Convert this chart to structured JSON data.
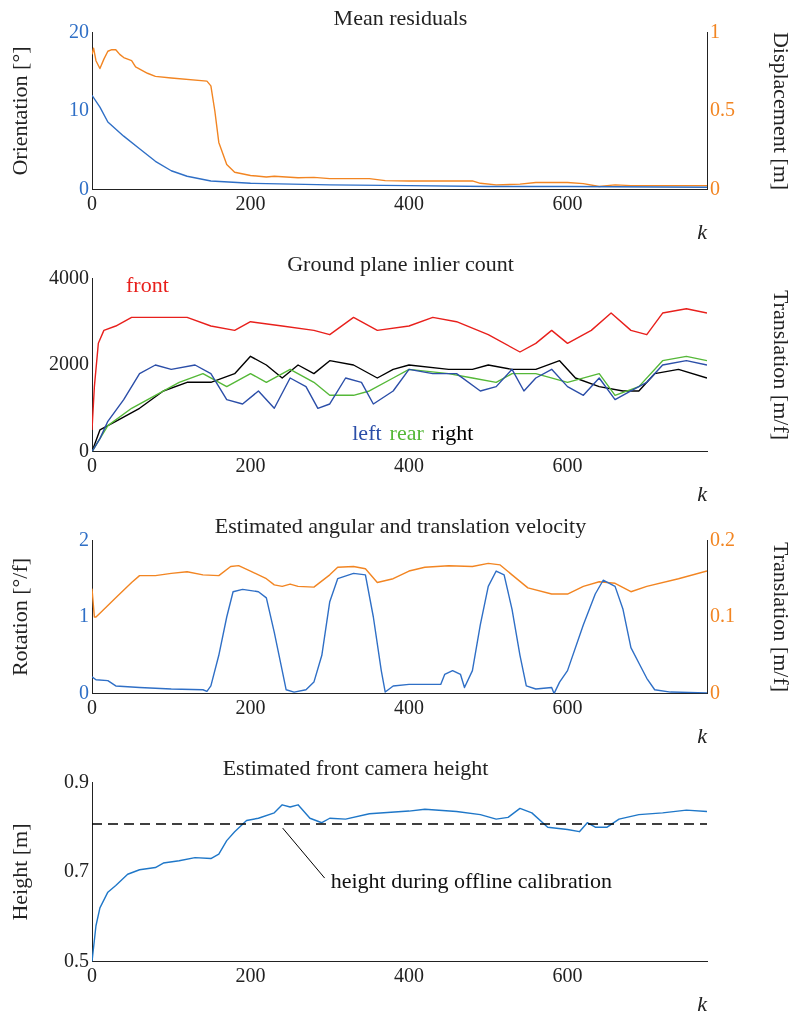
{
  "chart_data": [
    {
      "type": "line",
      "title": "Mean residuals",
      "xlabel": "k",
      "ylabel": "Orientation [°]",
      "y2label": "Displacement [m]",
      "xlim": [
        0,
        776
      ],
      "xticks": [
        0,
        200,
        400,
        600
      ],
      "ylim": [
        0,
        20
      ],
      "yticks": [
        0,
        10,
        20
      ],
      "y2lim": [
        0,
        1
      ],
      "y2ticks": [
        0,
        0.5,
        1
      ],
      "marker": "none",
      "series": [
        {
          "color": "#2f6fc6",
          "x": [
            0,
            10,
            20,
            40,
            60,
            80,
            100,
            120,
            150,
            200,
            300,
            400,
            500,
            600,
            776
          ],
          "values": [
            12,
            10.5,
            8.6,
            6.8,
            5.2,
            3.6,
            2.4,
            1.7,
            1.1,
            0.8,
            0.6,
            0.5,
            0.4,
            0.4,
            0.3
          ]
        },
        {
          "color": "#f28522",
          "axis": "y2",
          "x": [
            0,
            2,
            5,
            10,
            15,
            20,
            25,
            30,
            35,
            40,
            50,
            55,
            70,
            80,
            100,
            145,
            150,
            155,
            160,
            170,
            180,
            200,
            220,
            230,
            260,
            280,
            300,
            350,
            370,
            400,
            480,
            490,
            510,
            540,
            560,
            600,
            620,
            640,
            660,
            680,
            776
          ],
          "values": [
            0.86,
            0.9,
            0.82,
            0.77,
            0.83,
            0.88,
            0.89,
            0.89,
            0.86,
            0.84,
            0.82,
            0.78,
            0.74,
            0.72,
            0.71,
            0.69,
            0.66,
            0.5,
            0.3,
            0.16,
            0.11,
            0.09,
            0.08,
            0.085,
            0.075,
            0.078,
            0.07,
            0.07,
            0.057,
            0.055,
            0.055,
            0.04,
            0.03,
            0.035,
            0.045,
            0.045,
            0.038,
            0.02,
            0.03,
            0.025,
            0.025
          ]
        }
      ]
    },
    {
      "type": "line",
      "title": "Ground plane inlier count",
      "xlabel": "k",
      "y2label": "Translation [m/f]",
      "xlim": [
        0,
        776
      ],
      "xticks": [
        0,
        200,
        400,
        600
      ],
      "ylim": [
        0,
        4000
      ],
      "yticks": [
        0,
        2000,
        4000
      ],
      "marker": "none",
      "series": [
        {
          "name": "front",
          "color": "#e8201c",
          "x": [
            0,
            3,
            8,
            15,
            30,
            50,
            80,
            120,
            150,
            180,
            200,
            240,
            280,
            300,
            330,
            360,
            400,
            430,
            460,
            500,
            540,
            560,
            580,
            600,
            630,
            655,
            680,
            700,
            720,
            750,
            776
          ],
          "values": [
            500,
            1500,
            2500,
            2800,
            2900,
            3100,
            3100,
            3100,
            2900,
            2800,
            3000,
            2900,
            2800,
            2700,
            3100,
            2800,
            2900,
            3100,
            3000,
            2700,
            2300,
            2500,
            2800,
            2500,
            2800,
            3200,
            2800,
            2700,
            3200,
            3300,
            3200
          ]
        },
        {
          "name": "left",
          "color": "#2b4ea8",
          "x": [
            0,
            10,
            20,
            40,
            60,
            80,
            100,
            130,
            150,
            170,
            190,
            210,
            230,
            250,
            270,
            285,
            300,
            320,
            340,
            355,
            380,
            400,
            430,
            460,
            490,
            510,
            530,
            545,
            560,
            580,
            600,
            620,
            640,
            660,
            680,
            700,
            720,
            750,
            776
          ],
          "values": [
            0,
            300,
            700,
            1200,
            1800,
            2000,
            1900,
            2000,
            1800,
            1200,
            1100,
            1400,
            1000,
            1700,
            1500,
            1000,
            1100,
            1700,
            1600,
            1100,
            1400,
            1900,
            1800,
            1800,
            1400,
            1500,
            1900,
            1400,
            1700,
            1900,
            1500,
            1300,
            1700,
            1200,
            1400,
            1600,
            2000,
            2100,
            2000
          ]
        },
        {
          "name": "rear",
          "color": "#55b838",
          "x": [
            0,
            20,
            50,
            80,
            110,
            140,
            170,
            200,
            220,
            250,
            280,
            300,
            330,
            350,
            380,
            400,
            450,
            480,
            510,
            530,
            560,
            600,
            640,
            660,
            690,
            720,
            750,
            776
          ],
          "values": [
            0,
            600,
            1000,
            1300,
            1600,
            1800,
            1500,
            1800,
            1600,
            1900,
            1600,
            1300,
            1300,
            1400,
            1700,
            1900,
            1800,
            1700,
            1600,
            1800,
            1800,
            1600,
            1800,
            1300,
            1500,
            2100,
            2200,
            2100
          ]
        },
        {
          "name": "right",
          "color": "#000000",
          "x": [
            0,
            10,
            30,
            60,
            90,
            120,
            150,
            180,
            200,
            220,
            240,
            260,
            280,
            300,
            330,
            360,
            380,
            400,
            450,
            480,
            500,
            530,
            560,
            590,
            610,
            640,
            670,
            690,
            710,
            740,
            776
          ],
          "values": [
            0,
            500,
            700,
            1000,
            1400,
            1600,
            1600,
            1800,
            2200,
            2000,
            1700,
            2000,
            1800,
            2100,
            2000,
            1700,
            1900,
            2000,
            1900,
            1900,
            2000,
            1900,
            1900,
            2100,
            1700,
            1500,
            1400,
            1400,
            1800,
            1900,
            1700
          ]
        }
      ]
    },
    {
      "type": "line",
      "title": "Estimated angular and translation velocity",
      "xlabel": "k",
      "ylabel": "Rotation [°/f]",
      "y2label": "Translation [m/f]",
      "xlim": [
        0,
        776
      ],
      "xticks": [
        0,
        200,
        400,
        600
      ],
      "ylim": [
        0,
        2
      ],
      "yticks": [
        0,
        1,
        2
      ],
      "y2lim": [
        0,
        0.2
      ],
      "y2ticks": [
        0,
        0.1,
        0.2
      ],
      "marker": "none",
      "series": [
        {
          "color": "#2f6fc6",
          "x": [
            0,
            5,
            20,
            30,
            60,
            100,
            140,
            145,
            150,
            160,
            170,
            178,
            190,
            210,
            220,
            230,
            240,
            245,
            255,
            270,
            280,
            290,
            300,
            310,
            330,
            345,
            355,
            365,
            370,
            380,
            400,
            440,
            445,
            455,
            465,
            470,
            480,
            490,
            500,
            510,
            520,
            530,
            540,
            548,
            560,
            580,
            583,
            590,
            600,
            620,
            635,
            645,
            660,
            670,
            680,
            690,
            700,
            710,
            730,
            776
          ],
          "values": [
            0.22,
            0.18,
            0.17,
            0.1,
            0.08,
            0.06,
            0.05,
            0.03,
            0.1,
            0.5,
            1.0,
            1.33,
            1.36,
            1.33,
            1.25,
            0.8,
            0.3,
            0.05,
            0.02,
            0.05,
            0.15,
            0.5,
            1.2,
            1.5,
            1.57,
            1.55,
            1.0,
            0.3,
            0.02,
            0.1,
            0.12,
            0.12,
            0.25,
            0.3,
            0.25,
            0.08,
            0.3,
            0.9,
            1.4,
            1.6,
            1.55,
            1.1,
            0.5,
            0.1,
            0.06,
            0.08,
            0,
            0.15,
            0.3,
            0.9,
            1.3,
            1.48,
            1.4,
            1.1,
            0.6,
            0.4,
            0.2,
            0.05,
            0.02,
            0.01
          ]
        },
        {
          "color": "#f28522",
          "axis": "y2",
          "x": [
            0,
            3,
            5,
            10,
            30,
            50,
            60,
            80,
            100,
            120,
            140,
            160,
            175,
            185,
            200,
            220,
            230,
            240,
            250,
            260,
            280,
            300,
            310,
            330,
            345,
            360,
            380,
            400,
            420,
            450,
            480,
            500,
            515,
            530,
            550,
            580,
            600,
            620,
            640,
            660,
            680,
            700,
            740,
            776
          ],
          "values": [
            0.137,
            0.1,
            0.1,
            0.105,
            0.125,
            0.145,
            0.154,
            0.154,
            0.157,
            0.159,
            0.155,
            0.154,
            0.166,
            0.167,
            0.16,
            0.15,
            0.142,
            0.14,
            0.143,
            0.14,
            0.139,
            0.155,
            0.165,
            0.166,
            0.163,
            0.145,
            0.15,
            0.16,
            0.165,
            0.167,
            0.166,
            0.17,
            0.168,
            0.155,
            0.138,
            0.13,
            0.13,
            0.14,
            0.146,
            0.144,
            0.133,
            0.14,
            0.15,
            0.16
          ]
        }
      ]
    },
    {
      "type": "line",
      "title": "Estimated front camera height",
      "xlabel": "k",
      "ylabel": "Height [m]",
      "xlim": [
        0,
        776
      ],
      "xticks": [
        0,
        200,
        400,
        600
      ],
      "ylim": [
        0.5,
        0.9
      ],
      "yticks": [
        0.5,
        0.7,
        0.9
      ],
      "marker": "none",
      "ref_lines": [
        {
          "axis": "y",
          "value": 0.807,
          "label": "height during offline calibration",
          "color": "#000000",
          "line_style": "dashed"
        }
      ],
      "series": [
        {
          "color": "#1f77c8",
          "x": [
            0,
            5,
            10,
            20,
            30,
            45,
            60,
            80,
            90,
            110,
            130,
            150,
            160,
            170,
            180,
            195,
            210,
            230,
            240,
            250,
            260,
            275,
            290,
            300,
            320,
            350,
            400,
            420,
            460,
            490,
            510,
            525,
            540,
            555,
            575,
            600,
            615,
            625,
            635,
            650,
            665,
            690,
            720,
            750,
            776
          ],
          "values": [
            0.5,
            0.58,
            0.62,
            0.655,
            0.67,
            0.695,
            0.705,
            0.71,
            0.72,
            0.725,
            0.732,
            0.73,
            0.74,
            0.77,
            0.79,
            0.815,
            0.82,
            0.832,
            0.85,
            0.845,
            0.85,
            0.82,
            0.81,
            0.82,
            0.818,
            0.83,
            0.836,
            0.84,
            0.835,
            0.828,
            0.818,
            0.822,
            0.842,
            0.832,
            0.8,
            0.795,
            0.79,
            0.81,
            0.8,
            0.8,
            0.818,
            0.828,
            0.832,
            0.838,
            0.835
          ]
        }
      ]
    }
  ]
}
